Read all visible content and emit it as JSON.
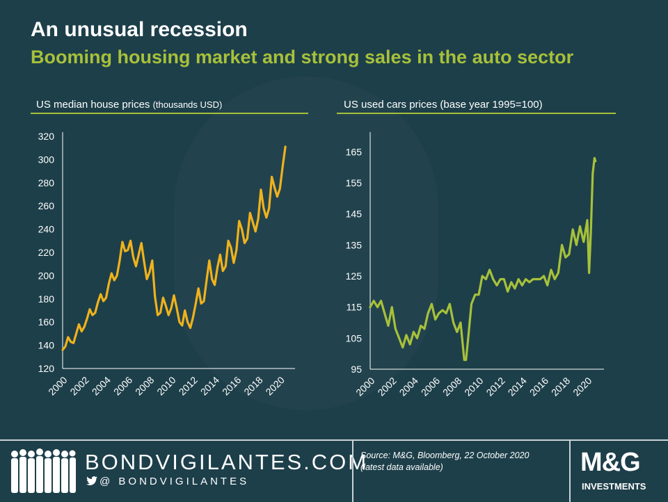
{
  "header": {
    "title": "An unusual recession",
    "subtitle": "Booming housing market and strong sales in the auto sector"
  },
  "colors": {
    "background": "#1d3f4a",
    "accent": "#a7c13a",
    "house_line": "#f0b21c",
    "cars_line": "#a7c13a"
  },
  "footer": {
    "site": "BONDVIGILANTES.COM",
    "handle": "@ BONDVIGILANTES",
    "source_line1": "Source: M&G,  Bloomberg, 22 October 2020",
    "source_line2": "(latest data available)",
    "logo_main": "M&G",
    "logo_sub": "INVESTMENTS",
    "icons": [
      "people-silhouettes-icon",
      "twitter-bird-icon"
    ]
  },
  "chart_data": [
    {
      "type": "line",
      "title": "US median house prices",
      "title_unit": "(thousands USD)",
      "xlabel": "",
      "ylabel": "",
      "ylim": [
        120,
        320
      ],
      "yticks": [
        120,
        140,
        160,
        180,
        200,
        220,
        240,
        260,
        280,
        300,
        320
      ],
      "xlim": [
        2000,
        2020.75
      ],
      "xticks": [
        2000,
        2002,
        2004,
        2006,
        2008,
        2010,
        2012,
        2014,
        2016,
        2018,
        2020
      ],
      "series": [
        {
          "color": "#f0b21c",
          "x": [
            2000.0,
            2000.25,
            2000.5,
            2000.75,
            2001.0,
            2001.25,
            2001.5,
            2001.75,
            2002.0,
            2002.25,
            2002.5,
            2002.75,
            2003.0,
            2003.25,
            2003.5,
            2003.75,
            2004.0,
            2004.25,
            2004.5,
            2004.75,
            2005.0,
            2005.25,
            2005.5,
            2005.75,
            2006.0,
            2006.25,
            2006.5,
            2006.75,
            2007.0,
            2007.25,
            2007.5,
            2007.75,
            2008.0,
            2008.25,
            2008.5,
            2008.75,
            2009.0,
            2009.25,
            2009.5,
            2009.75,
            2010.0,
            2010.25,
            2010.5,
            2010.75,
            2011.0,
            2011.25,
            2011.5,
            2011.75,
            2012.0,
            2012.25,
            2012.5,
            2012.75,
            2013.0,
            2013.25,
            2013.5,
            2013.75,
            2014.0,
            2014.25,
            2014.5,
            2014.75,
            2015.0,
            2015.25,
            2015.5,
            2015.75,
            2016.0,
            2016.25,
            2016.5,
            2016.75,
            2017.0,
            2017.25,
            2017.5,
            2017.75,
            2018.0,
            2018.25,
            2018.5,
            2018.75,
            2019.0,
            2019.25,
            2019.5,
            2019.75,
            2020.0,
            2020.25,
            2020.5
          ],
          "values": [
            136,
            139,
            147,
            143,
            142,
            150,
            158,
            152,
            156,
            163,
            171,
            166,
            168,
            177,
            184,
            178,
            181,
            193,
            202,
            196,
            200,
            213,
            229,
            221,
            222,
            230,
            216,
            208,
            218,
            228,
            212,
            197,
            203,
            213,
            182,
            166,
            168,
            181,
            174,
            166,
            172,
            183,
            172,
            160,
            157,
            170,
            160,
            155,
            164,
            176,
            189,
            176,
            178,
            196,
            213,
            197,
            192,
            207,
            218,
            204,
            208,
            230,
            224,
            211,
            222,
            247,
            240,
            228,
            232,
            254,
            246,
            238,
            249,
            274,
            258,
            250,
            258,
            285,
            276,
            268,
            275,
            294,
            311
          ]
        }
      ]
    },
    {
      "type": "line",
      "title": "US used cars prices (base year 1995=100)",
      "xlabel": "",
      "ylabel": "",
      "ylim": [
        95,
        170
      ],
      "yticks": [
        95,
        105,
        115,
        125,
        135,
        145,
        155,
        165
      ],
      "xlim": [
        2000,
        2020.9
      ],
      "xticks": [
        2000,
        2002,
        2004,
        2006,
        2008,
        2010,
        2012,
        2014,
        2016,
        2018,
        2020
      ],
      "series": [
        {
          "color": "#a7c13a",
          "x": [
            2000.0,
            2000.33,
            2000.67,
            2001.0,
            2001.33,
            2001.67,
            2002.0,
            2002.33,
            2002.67,
            2003.0,
            2003.33,
            2003.67,
            2004.0,
            2004.33,
            2004.67,
            2005.0,
            2005.33,
            2005.67,
            2006.0,
            2006.33,
            2006.67,
            2007.0,
            2007.33,
            2007.67,
            2008.0,
            2008.33,
            2008.67,
            2008.83,
            2009.0,
            2009.33,
            2009.67,
            2010.0,
            2010.33,
            2010.67,
            2011.0,
            2011.33,
            2011.67,
            2012.0,
            2012.33,
            2012.67,
            2013.0,
            2013.33,
            2013.67,
            2014.0,
            2014.33,
            2014.67,
            2015.0,
            2015.33,
            2015.67,
            2016.0,
            2016.33,
            2016.67,
            2017.0,
            2017.33,
            2017.67,
            2018.0,
            2018.33,
            2018.67,
            2019.0,
            2019.33,
            2019.67,
            2020.0,
            2020.17,
            2020.33,
            2020.5,
            2020.67,
            2020.75
          ],
          "values": [
            115,
            117,
            115,
            117,
            113,
            109,
            115,
            108,
            105,
            102,
            106,
            103,
            107,
            105,
            109,
            108,
            113,
            116,
            111,
            113,
            114,
            113,
            116,
            110,
            107,
            110,
            98,
            98,
            104,
            116,
            119,
            119,
            125,
            124,
            127,
            124,
            122,
            124,
            124,
            120,
            123,
            121,
            124,
            122,
            124,
            123,
            124,
            124,
            124,
            125,
            122,
            127,
            124,
            126,
            135,
            131,
            132,
            140,
            135,
            141,
            136,
            143,
            126,
            139,
            158,
            163,
            162
          ]
        }
      ]
    }
  ]
}
